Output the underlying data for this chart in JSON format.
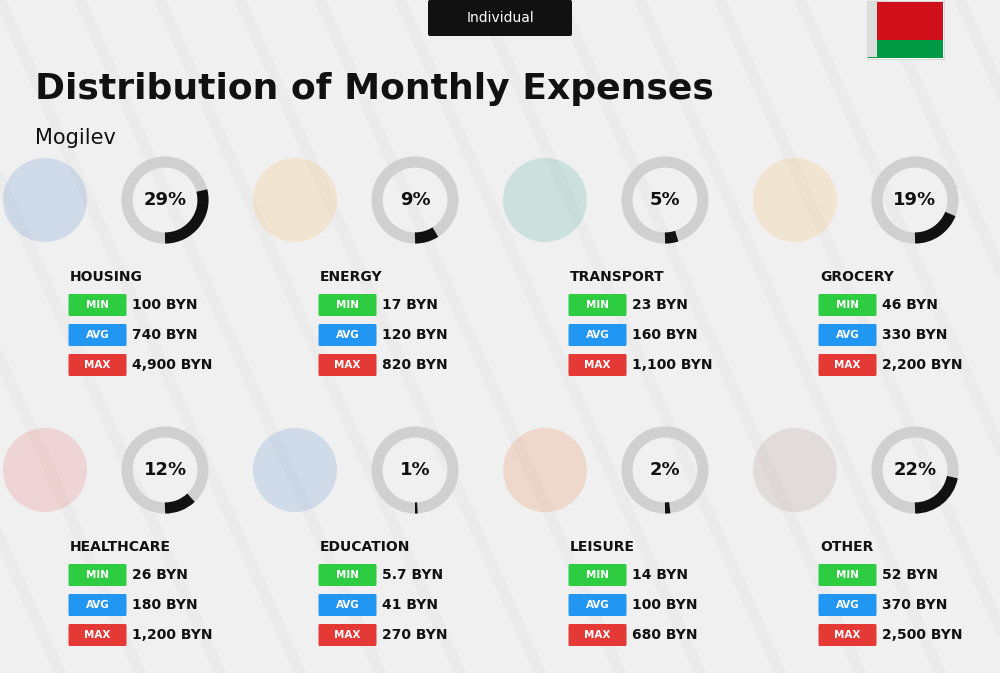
{
  "title": "Distribution of Monthly Expenses",
  "subtitle": "Individual",
  "city": "Mogilev",
  "bg_color": "#f0f0f0",
  "categories": [
    {
      "name": "HOUSING",
      "percent": 29,
      "min": "100 BYN",
      "avg": "740 BYN",
      "max": "4,900 BYN",
      "icon": "housing",
      "row": 0,
      "col": 0
    },
    {
      "name": "ENERGY",
      "percent": 9,
      "min": "17 BYN",
      "avg": "120 BYN",
      "max": "820 BYN",
      "icon": "energy",
      "row": 0,
      "col": 1
    },
    {
      "name": "TRANSPORT",
      "percent": 5,
      "min": "23 BYN",
      "avg": "160 BYN",
      "max": "1,100 BYN",
      "icon": "transport",
      "row": 0,
      "col": 2
    },
    {
      "name": "GROCERY",
      "percent": 19,
      "min": "46 BYN",
      "avg": "330 BYN",
      "max": "2,200 BYN",
      "icon": "grocery",
      "row": 0,
      "col": 3
    },
    {
      "name": "HEALTHCARE",
      "percent": 12,
      "min": "26 BYN",
      "avg": "180 BYN",
      "max": "1,200 BYN",
      "icon": "healthcare",
      "row": 1,
      "col": 0
    },
    {
      "name": "EDUCATION",
      "percent": 1,
      "min": "5.7 BYN",
      "avg": "41 BYN",
      "max": "270 BYN",
      "icon": "education",
      "row": 1,
      "col": 1
    },
    {
      "name": "LEISURE",
      "percent": 2,
      "min": "14 BYN",
      "avg": "100 BYN",
      "max": "680 BYN",
      "icon": "leisure",
      "row": 1,
      "col": 2
    },
    {
      "name": "OTHER",
      "percent": 22,
      "min": "52 BYN",
      "avg": "370 BYN",
      "max": "2,500 BYN",
      "icon": "other",
      "row": 1,
      "col": 3
    }
  ],
  "color_min": "#2ecc40",
  "color_avg": "#2196f3",
  "color_max": "#e53935",
  "color_text": "#111111",
  "arc_color_active": "#111111",
  "arc_color_bg": "#d0d0d0",
  "subtitle_bg": "#111111",
  "subtitle_fg": "#ffffff",
  "flag_colors": [
    "#cf101a",
    "#009a44"
  ]
}
